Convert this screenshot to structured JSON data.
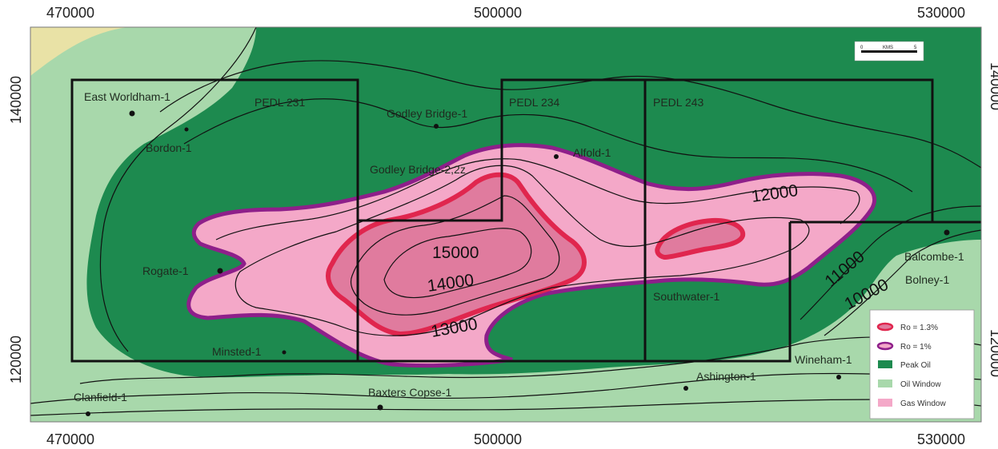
{
  "axes": {
    "top": [
      "470000",
      "500000",
      "530000"
    ],
    "bottom": [
      "470000",
      "500000",
      "530000"
    ],
    "left": [
      "140000",
      "120000"
    ],
    "right": [
      "140000",
      "120000"
    ]
  },
  "licences": [
    "PEDL 231",
    "PEDL 234",
    "PEDL 243"
  ],
  "wells": [
    {
      "name": "East Worldham-1"
    },
    {
      "name": "Bordon-1"
    },
    {
      "name": "Godley Bridge-1"
    },
    {
      "name": "Godley Bridge-2,2z"
    },
    {
      "name": "Alfold-1"
    },
    {
      "name": "Rogate-1"
    },
    {
      "name": "Minsted-1"
    },
    {
      "name": "Southwater-1"
    },
    {
      "name": "Balcombe-1"
    },
    {
      "name": "Bolney-1"
    },
    {
      "name": "Wineham-1"
    },
    {
      "name": "Ashington-1"
    },
    {
      "name": "Baxters Copse-1"
    },
    {
      "name": "Clanfield-1"
    }
  ],
  "contours": [
    "15000",
    "14000",
    "13000",
    "12000",
    "11000",
    "10000"
  ],
  "legend": {
    "items": [
      {
        "label": "Ro = 1.3%",
        "color": "#e0264e"
      },
      {
        "label": "Ro = 1%",
        "color": "#8e1f8a"
      },
      {
        "label": "Peak Oil",
        "color": "#1d8a4f"
      },
      {
        "label": "Oil Window",
        "color": "#a8d8ab"
      },
      {
        "label": "Gas Window",
        "color": "#f4a8c8"
      }
    ]
  },
  "scale_bar": {
    "start": "0",
    "unit": "KMS",
    "end": "5"
  },
  "colors": {
    "peak_oil": "#1d8a4f",
    "oil_window": "#a8d8ab",
    "gas_window": "#f4a8c8",
    "gas_core": "#e07b9e",
    "ro13": "#e0264e",
    "ro1": "#8e1f8a",
    "outer": "#e9e2a6"
  }
}
